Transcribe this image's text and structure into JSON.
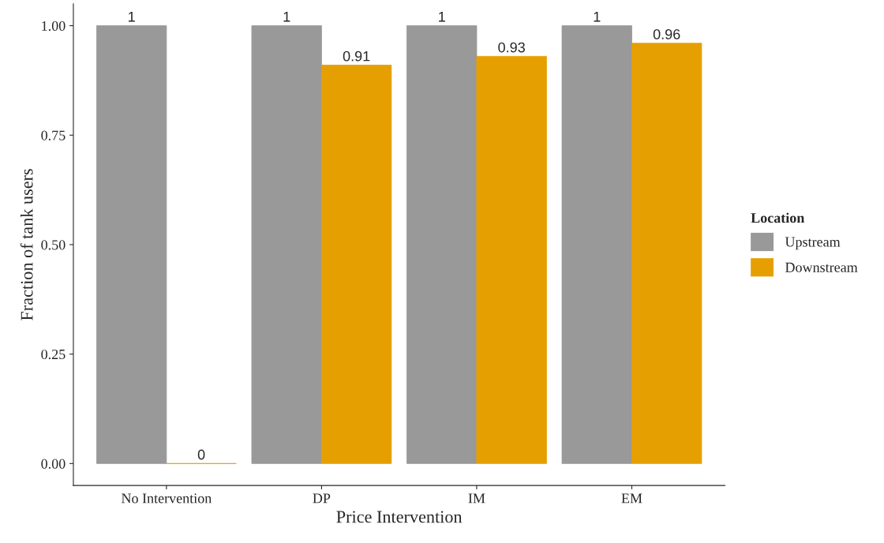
{
  "chart_data": {
    "type": "bar",
    "xlabel": "Price Intervention",
    "ylabel": "Fraction of tank users",
    "legend_title": "Location",
    "categories": [
      "No Intervention",
      "DP",
      "IM",
      "EM"
    ],
    "series": [
      {
        "name": "Upstream",
        "color": "#999999",
        "values": [
          1,
          1,
          1,
          1
        ]
      },
      {
        "name": "Downstream",
        "color": "#e69f00",
        "values": [
          0,
          0.91,
          0.93,
          0.96
        ]
      }
    ],
    "ylim": [
      -0.05,
      1.05
    ],
    "yticks": [
      {
        "value": 0,
        "label": "0.00"
      },
      {
        "value": 0.25,
        "label": "0.25"
      },
      {
        "value": 0.5,
        "label": "0.50"
      },
      {
        "value": 0.75,
        "label": "0.75"
      },
      {
        "value": 1,
        "label": "1.00"
      }
    ],
    "grid": false,
    "legend": "right",
    "data_labels": true
  }
}
